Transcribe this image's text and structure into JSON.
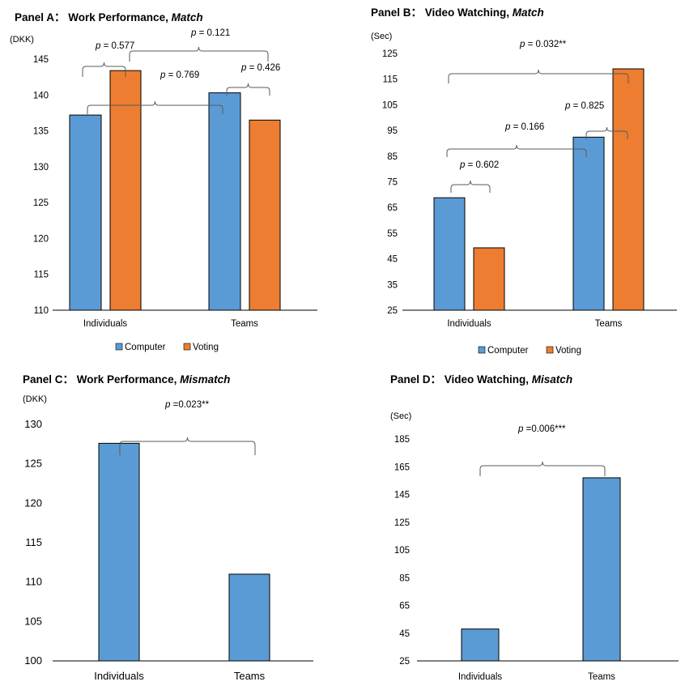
{
  "colors": {
    "computer": "#5b9bd5",
    "voting": "#ed7d31",
    "axis": "#000000",
    "bracket": "#595959"
  },
  "chart_data": [
    {
      "panel": "A",
      "type": "bar",
      "title_prefix": "Panel A：",
      "title_main": "Work Performance, ",
      "title_italic": "Match",
      "unit": "(DKK)",
      "categories": [
        "Individuals",
        "Teams"
      ],
      "series": [
        {
          "name": "Computer",
          "values": [
            137.2,
            140.3
          ]
        },
        {
          "name": "Voting",
          "values": [
            143.4,
            136.5
          ]
        }
      ],
      "ylim": [
        110,
        145
      ],
      "ticks": [
        110,
        115,
        120,
        125,
        130,
        135,
        140,
        145
      ],
      "legend_position": "bottom",
      "annotations": [
        {
          "p": "p",
          "text": " = 0.577",
          "between": [
            [
              0,
              0
            ],
            [
              0,
              1
            ]
          ]
        },
        {
          "p": "p",
          "text": " = 0.121",
          "between": [
            [
              0,
              1
            ],
            [
              1,
              1
            ]
          ]
        },
        {
          "p": "p",
          "text": " = 0.769",
          "between": [
            [
              0,
              0
            ],
            [
              1,
              0
            ]
          ]
        },
        {
          "p": "p",
          "text": " = 0.426",
          "between": [
            [
              1,
              0
            ],
            [
              1,
              1
            ]
          ]
        }
      ]
    },
    {
      "panel": "B",
      "type": "bar",
      "title_prefix": "Panel B：",
      "title_main": "Video Watching, ",
      "title_italic": "Match",
      "unit": "(Sec)",
      "categories": [
        "Individuals",
        "Teams"
      ],
      "series": [
        {
          "name": "Computer",
          "values": [
            68.8,
            92.4
          ]
        },
        {
          "name": "Voting",
          "values": [
            49.3,
            119.0
          ]
        }
      ],
      "ylim": [
        25,
        125
      ],
      "ticks": [
        25,
        35,
        45,
        55,
        65,
        75,
        85,
        95,
        105,
        115,
        125
      ],
      "legend_position": "bottom",
      "annotations": [
        {
          "p": "p",
          "text": " = 0.032**",
          "between": [
            [
              0,
              0
            ],
            [
              1,
              1
            ]
          ]
        },
        {
          "p": "p",
          "text": " = 0.825",
          "between": [
            [
              1,
              0
            ],
            [
              1,
              1
            ]
          ]
        },
        {
          "p": "p",
          "text": " = 0.166",
          "between": [
            [
              0,
              0
            ],
            [
              1,
              0
            ]
          ]
        },
        {
          "p": "p",
          "text": " = 0.602",
          "between": [
            [
              0,
              0
            ],
            [
              0,
              1
            ]
          ]
        }
      ]
    },
    {
      "panel": "C",
      "type": "bar",
      "title_prefix": "Panel C：",
      "title_main": "Work Performance, ",
      "title_italic": "Mismatch",
      "unit": "(DKK)",
      "categories": [
        "Individuals",
        "Teams"
      ],
      "series": [
        {
          "name": "",
          "values": [
            127.6,
            111.0
          ]
        }
      ],
      "ylim": [
        100,
        130
      ],
      "ticks": [
        100,
        105,
        110,
        115,
        120,
        125,
        130
      ],
      "annotations": [
        {
          "p": "p",
          "text": " =0.023**",
          "between": [
            [
              0,
              0
            ],
            [
              1,
              0
            ]
          ]
        }
      ]
    },
    {
      "panel": "D",
      "type": "bar",
      "title_prefix": "Panel D：",
      "title_main": "Video Watching, ",
      "title_italic": "Misatch",
      "unit": "(Sec)",
      "categories": [
        "Individuals",
        "Teams"
      ],
      "series": [
        {
          "name": "",
          "values": [
            48.0,
            157.0
          ]
        }
      ],
      "ylim": [
        25,
        185
      ],
      "ticks": [
        25,
        45,
        65,
        85,
        105,
        125,
        145,
        165,
        185
      ],
      "annotations": [
        {
          "p": "p",
          "text": " =0.006***",
          "between": [
            [
              0,
              0
            ],
            [
              1,
              0
            ]
          ]
        }
      ]
    }
  ]
}
